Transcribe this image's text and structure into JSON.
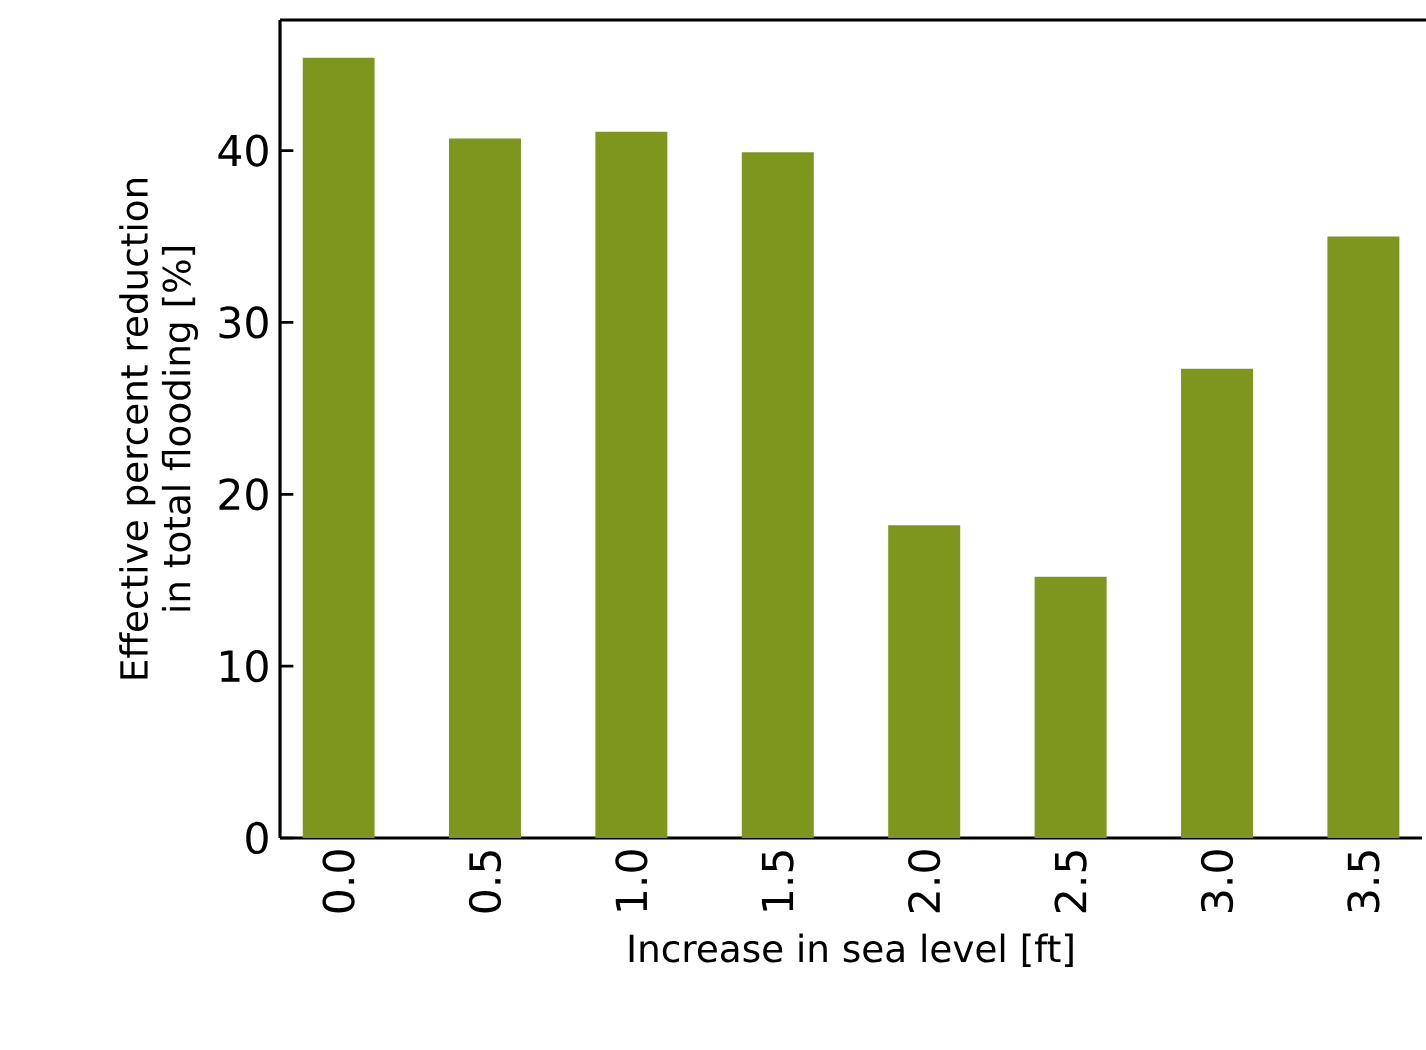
{
  "chart_data": {
    "type": "bar",
    "xlabel": "Increase in sea level [ft]",
    "ylabel": "Effective percent reduction\nin total flooding [%]",
    "categories": [
      "0.0",
      "0.5",
      "1.0",
      "1.5",
      "2.0",
      "2.5",
      "3.0",
      "3.5"
    ],
    "values": [
      45.4,
      40.7,
      41.1,
      39.9,
      18.2,
      15.2,
      27.3,
      35.0
    ],
    "color": "#7f961e",
    "ylim": [
      0,
      47.6
    ],
    "yticks": [
      0,
      10,
      20,
      30,
      40
    ],
    "grid": false,
    "legend": false
  }
}
